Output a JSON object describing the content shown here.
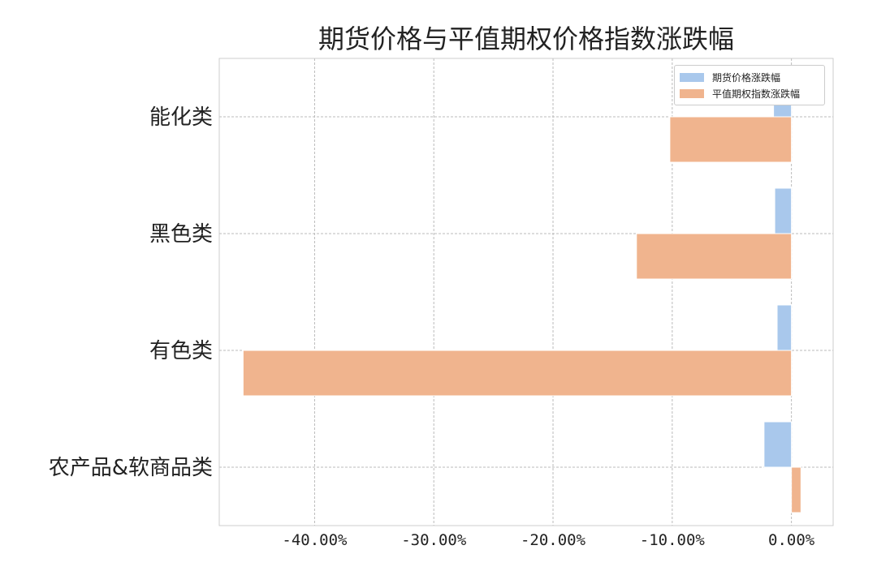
{
  "chart_data": {
    "type": "bar",
    "orientation": "horizontal",
    "title": "期货价格与平值期权价格指数涨跌幅",
    "categories": [
      "能化类",
      "黑色类",
      "有色类",
      "农产品&软商品类"
    ],
    "series": [
      {
        "name": "期货价格涨跌幅",
        "color": "#a9c8ec",
        "values": [
          -1.5,
          -1.4,
          -1.2,
          -2.3
        ]
      },
      {
        "name": "平值期权指数涨跌幅",
        "color": "#f0b48e",
        "values": [
          -10.2,
          -13.0,
          -46.0,
          0.8
        ]
      }
    ],
    "xlim": [
      -48,
      3.5
    ],
    "xticks": [
      -40,
      -30,
      -20,
      -10,
      0
    ],
    "xtick_labels": [
      "-40.00%",
      "-30.00%",
      "-20.00%",
      "-10.00%",
      "0.00%"
    ],
    "grid": true,
    "legend_position": "top-right"
  }
}
